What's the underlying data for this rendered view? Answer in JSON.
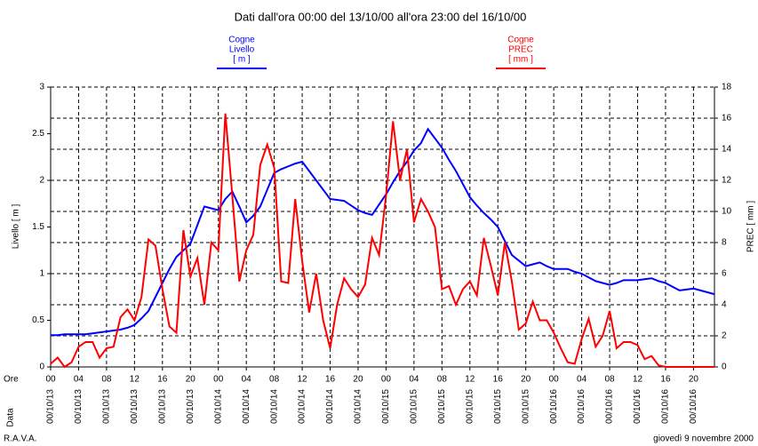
{
  "chart_data": {
    "type": "line",
    "title": "Dati dall'ora 00:00 del 13/10/00 all'ora 23:00 del 16/10/00",
    "ylabel": "Livello [ m ]",
    "y2label": "PREC [ mm ]",
    "xlabel": "Ore",
    "xdate_label": "Data",
    "footer_left": "R.A.V.A.",
    "footer_right": "giovedì 9 novembre 2000",
    "x": [
      0,
      1,
      2,
      3,
      4,
      5,
      6,
      7,
      8,
      9,
      10,
      11,
      12,
      13,
      14,
      15,
      16,
      17,
      18,
      19,
      20,
      21,
      22,
      23,
      24,
      25,
      26,
      27,
      28,
      29,
      30,
      31,
      32,
      33,
      34,
      35,
      36,
      37,
      38,
      39,
      40,
      41,
      42,
      43,
      44,
      45,
      46,
      47,
      48,
      49,
      50,
      51,
      52,
      53,
      54,
      55,
      56,
      57,
      58,
      59,
      60,
      61,
      62,
      63,
      64,
      65,
      66,
      67,
      68,
      69,
      70,
      71,
      72,
      73,
      74,
      75,
      76,
      77,
      78,
      79,
      80,
      81,
      82,
      83,
      84,
      85,
      86,
      87,
      88,
      89,
      90,
      91,
      92,
      93,
      94,
      95
    ],
    "xlim": [
      0,
      95
    ],
    "xticks": [
      {
        "value": 0,
        "label": "00"
      },
      {
        "value": 4,
        "label": "04"
      },
      {
        "value": 8,
        "label": "08"
      },
      {
        "value": 12,
        "label": "12"
      },
      {
        "value": 16,
        "label": "16"
      },
      {
        "value": 20,
        "label": "20"
      },
      {
        "value": 24,
        "label": "00"
      },
      {
        "value": 28,
        "label": "04"
      },
      {
        "value": 32,
        "label": "08"
      },
      {
        "value": 36,
        "label": "12"
      },
      {
        "value": 40,
        "label": "16"
      },
      {
        "value": 44,
        "label": "20"
      },
      {
        "value": 48,
        "label": "00"
      },
      {
        "value": 52,
        "label": "04"
      },
      {
        "value": 56,
        "label": "08"
      },
      {
        "value": 60,
        "label": "12"
      },
      {
        "value": 64,
        "label": "16"
      },
      {
        "value": 68,
        "label": "20"
      },
      {
        "value": 72,
        "label": "00"
      },
      {
        "value": 76,
        "label": "04"
      },
      {
        "value": 80,
        "label": "08"
      },
      {
        "value": 84,
        "label": "12"
      },
      {
        "value": 88,
        "label": "16"
      },
      {
        "value": 92,
        "label": "20"
      }
    ],
    "xtick_dates": [
      "00/10/13",
      "00/10/13",
      "00/10/13",
      "00/10/13",
      "00/10/13",
      "00/10/13",
      "00/10/14",
      "00/10/14",
      "00/10/14",
      "00/10/14",
      "00/10/14",
      "00/10/14",
      "00/10/15",
      "00/10/15",
      "00/10/15",
      "00/10/15",
      "00/10/15",
      "00/10/15",
      "00/10/16",
      "00/10/16",
      "00/10/16",
      "00/10/16",
      "00/10/16",
      "00/10/16"
    ],
    "ylim": [
      0,
      3
    ],
    "yticks": [
      0,
      0.5,
      1,
      1.5,
      2,
      2.5,
      3
    ],
    "y2lim": [
      0,
      18
    ],
    "y2ticks": [
      0,
      2,
      4,
      6,
      8,
      10,
      12,
      14,
      16,
      18
    ],
    "grid": "y2",
    "series": [
      {
        "station": "Cogne",
        "name": "Livello",
        "unit": "[ m ]",
        "color": "#0000ff",
        "axis": "y",
        "values": [
          0.34,
          0.34,
          0.35,
          0.35,
          0.35,
          0.35,
          0.36,
          0.37,
          0.38,
          0.39,
          0.4,
          0.42,
          0.45,
          0.52,
          0.6,
          0.75,
          0.9,
          1.05,
          1.18,
          1.25,
          1.32,
          1.52,
          1.72,
          1.7,
          1.68,
          1.8,
          1.88,
          1.72,
          1.55,
          1.62,
          1.72,
          1.9,
          2.08,
          2.12,
          2.15,
          2.18,
          2.2,
          2.1,
          2.0,
          1.9,
          1.8,
          1.79,
          1.78,
          1.73,
          1.68,
          1.65,
          1.63,
          1.74,
          1.85,
          1.98,
          2.1,
          2.2,
          2.32,
          2.4,
          2.55,
          2.45,
          2.35,
          2.22,
          2.1,
          1.96,
          1.82,
          1.73,
          1.65,
          1.58,
          1.5,
          1.35,
          1.2,
          1.14,
          1.08,
          1.1,
          1.12,
          1.08,
          1.05,
          1.05,
          1.05,
          1.02,
          1.0,
          0.96,
          0.92,
          0.9,
          0.88,
          0.9,
          0.93,
          0.93,
          0.93,
          0.94,
          0.95,
          0.92,
          0.9,
          0.86,
          0.82,
          0.83,
          0.84,
          0.82,
          0.8,
          0.78
        ]
      },
      {
        "station": "Cogne",
        "name": "PREC",
        "unit": "[ mm ]",
        "color": "#ff0000",
        "axis": "y2",
        "values": [
          0.2,
          0.6,
          0,
          0.3,
          1.3,
          1.6,
          1.6,
          0.6,
          1.2,
          1.3,
          3.2,
          3.7,
          3.0,
          4.5,
          8.2,
          7.8,
          5.0,
          2.6,
          2.2,
          8.8,
          5.8,
          7.0,
          4.0,
          8.0,
          7.5,
          16.3,
          11,
          5.5,
          7.5,
          8.5,
          13,
          14.3,
          12.8,
          5.5,
          5.4,
          10.8,
          6.8,
          3.5,
          6,
          3,
          1.2,
          4,
          5.7,
          5,
          4.5,
          5.3,
          8.3,
          7.2,
          11,
          15.8,
          12,
          14,
          9.3,
          10.8,
          10,
          9,
          5,
          5.2,
          4,
          5,
          5.5,
          4.6,
          8.3,
          6.5,
          4.6,
          8,
          5.5,
          2.4,
          2.8,
          4.2,
          3,
          3,
          2.2,
          1.2,
          0.3,
          0.2,
          1.8,
          3.1,
          1.3,
          2,
          3.6,
          1.2,
          1.6,
          1.6,
          1.4,
          0.5,
          0.7,
          0.1,
          0,
          0,
          0,
          0,
          0,
          0,
          0,
          0
        ]
      }
    ]
  }
}
